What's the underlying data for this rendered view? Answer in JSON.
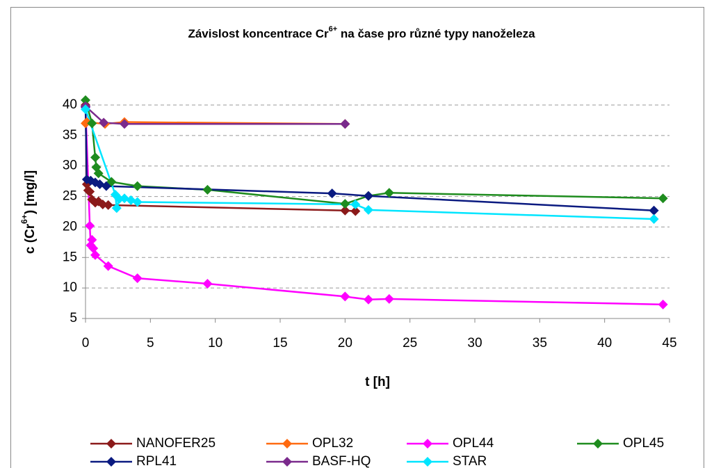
{
  "chart_data": {
    "type": "scatter",
    "title_parts": [
      "Závislost koncentrace Cr",
      "6+",
      " na čase pro různé typy nanoželeza"
    ],
    "x_label": "t [h]",
    "y_label_parts": [
      "c (Cr",
      "6+",
      ") [mg/l]"
    ],
    "xlim": [
      0,
      45
    ],
    "xticks": [
      0,
      5,
      10,
      15,
      20,
      25,
      30,
      35,
      40,
      45
    ],
    "ylim": [
      5,
      40
    ],
    "yticks": [
      5,
      10,
      15,
      20,
      25,
      30,
      35,
      40
    ],
    "grid": true,
    "legend": "bottom",
    "series": [
      {
        "name": "NANOFER25",
        "color": "#8B1A1A",
        "x": [
          0,
          0.1,
          0.2,
          0.33,
          0.5,
          0.75,
          1,
          1.33,
          1.75,
          20,
          20.8
        ],
        "values": [
          40,
          27,
          26,
          25.8,
          24.5,
          24,
          24.2,
          23.7,
          23.6,
          22.7,
          22.6
        ]
      },
      {
        "name": "OPL32",
        "color": "#FF6A10",
        "x": [
          0,
          0.1,
          1.5,
          3,
          20
        ],
        "values": [
          37,
          37.2,
          36.9,
          37.2,
          36.9
        ]
      },
      {
        "name": "OPL44",
        "color": "#FF00FF",
        "x": [
          0,
          0.33,
          0.4,
          0.5,
          0.6,
          0.75,
          1.75,
          4,
          9.4,
          20,
          21.8,
          23.4,
          44.5
        ],
        "values": [
          39.6,
          20.2,
          17,
          17.9,
          16.5,
          15.4,
          13.6,
          11.6,
          10.7,
          8.6,
          8.1,
          8.2,
          7.3
        ]
      },
      {
        "name": "OPL45",
        "color": "#1E8C1E",
        "x": [
          0,
          0.5,
          0.75,
          0.83,
          1,
          2,
          4,
          9.4,
          20,
          21.8,
          23.4,
          44.5
        ],
        "values": [
          40.8,
          37,
          31.4,
          29.8,
          28.8,
          27.4,
          26.7,
          26.1,
          23.8,
          25.1,
          25.6,
          24.7
        ]
      },
      {
        "name": "RPL41",
        "color": "#0A1A80",
        "x": [
          0,
          0.1,
          0.4,
          0.75,
          1.1,
          1.6,
          19,
          21.8,
          43.8
        ],
        "values": [
          39.7,
          27.8,
          27.6,
          27.3,
          27,
          26.7,
          25.5,
          25.1,
          22.7
        ]
      },
      {
        "name": "BASF-HQ",
        "color": "#7A2A8C",
        "x": [
          0,
          1.4,
          3,
          20
        ],
        "values": [
          39.8,
          37.1,
          36.9,
          36.9
        ]
      },
      {
        "name": "STAR",
        "color": "#00E5FF",
        "x": [
          0,
          2.3,
          2.4,
          2.6,
          3,
          3.5,
          4,
          20.8,
          21.8,
          43.8
        ],
        "values": [
          39.3,
          25.3,
          23.1,
          24.6,
          24.7,
          24.4,
          24.1,
          23.7,
          22.8,
          21.3
        ]
      }
    ]
  }
}
